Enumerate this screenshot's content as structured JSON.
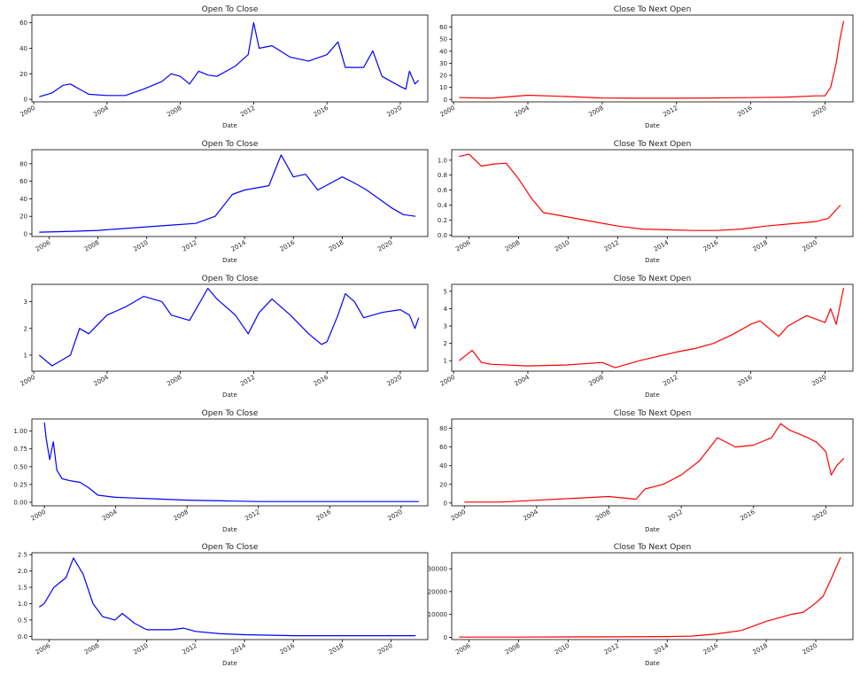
{
  "colors": {
    "open_to_close": "#0000ff",
    "close_to_next_open": "#ff0000",
    "axes": "#000000"
  },
  "chart_data": [
    {
      "type": "line",
      "title": "Open To Close",
      "xlabel": "Date",
      "ylabel": "",
      "xlim": [
        1999.9,
        2021.5
      ],
      "ylim": [
        -2,
        66
      ],
      "xticks": [
        2000,
        2004,
        2008,
        2012,
        2016,
        2020
      ],
      "yticks": [
        0,
        20,
        40,
        60
      ],
      "grid": false,
      "color": "#0000ff",
      "series": [
        {
          "x": [
            2000.3,
            2001,
            2001.6,
            2002,
            2002.5,
            2003,
            2004,
            2005,
            2006,
            2007,
            2007.5,
            2008,
            2008.5,
            2009,
            2009.5,
            2010,
            2011,
            2011.7,
            2012.0,
            2012.3,
            2013,
            2014,
            2015,
            2016,
            2016.6,
            2017,
            2018,
            2018.5,
            2019,
            2020,
            2020.3,
            2020.5,
            2020.8,
            2021.0
          ],
          "y": [
            2,
            5,
            11,
            12,
            8,
            4,
            3,
            3,
            8,
            14,
            20,
            18,
            12,
            22,
            19,
            18,
            26,
            35,
            60,
            40,
            42,
            33,
            30,
            35,
            45,
            25,
            25,
            38,
            18,
            10,
            8,
            22,
            12,
            15
          ]
        }
      ]
    },
    {
      "type": "line",
      "title": "Close To Next Open",
      "xlabel": "Date",
      "ylabel": "",
      "xlim": [
        1999.9,
        2021.5
      ],
      "ylim": [
        -2,
        70
      ],
      "xticks": [
        2000,
        2004,
        2008,
        2012,
        2016,
        2020
      ],
      "yticks": [
        0,
        10,
        20,
        30,
        40,
        50,
        60
      ],
      "grid": false,
      "color": "#ff0000",
      "series": [
        {
          "x": [
            2000.3,
            2002,
            2004,
            2006,
            2008,
            2010,
            2012,
            2014,
            2016,
            2018,
            2019.5,
            2020,
            2020.3,
            2020.6,
            2020.8,
            2021.0
          ],
          "y": [
            1.5,
            1,
            3.5,
            2.5,
            1.2,
            1,
            1,
            1.2,
            1.5,
            2,
            3,
            3,
            10,
            30,
            50,
            65
          ]
        }
      ]
    },
    {
      "type": "line",
      "title": "Open To Close",
      "xlabel": "Date",
      "ylabel": "",
      "xlim": [
        2005.3,
        2021.5
      ],
      "ylim": [
        -3,
        96
      ],
      "xticks": [
        2006,
        2008,
        2010,
        2012,
        2014,
        2016,
        2018,
        2020
      ],
      "yticks": [
        0,
        20,
        40,
        60,
        80
      ],
      "grid": false,
      "color": "#0000ff",
      "series": [
        {
          "x": [
            2005.6,
            2007,
            2008,
            2009,
            2010,
            2011,
            2012,
            2012.8,
            2013.5,
            2014,
            2015,
            2015.5,
            2016,
            2016.5,
            2017,
            2018,
            2018.5,
            2019,
            2020,
            2020.5,
            2021.0
          ],
          "y": [
            2,
            3,
            4,
            6,
            8,
            10,
            12,
            20,
            45,
            50,
            55,
            90,
            65,
            68,
            50,
            65,
            58,
            50,
            30,
            22,
            20
          ]
        }
      ]
    },
    {
      "type": "line",
      "title": "Close To Next Open",
      "xlabel": "Date",
      "ylabel": "",
      "xlim": [
        2005.3,
        2021.5
      ],
      "ylim": [
        -0.02,
        1.14
      ],
      "xticks": [
        2006,
        2008,
        2010,
        2012,
        2014,
        2016,
        2018,
        2020
      ],
      "yticks": [
        0.0,
        0.2,
        0.4,
        0.6,
        0.8,
        1.0
      ],
      "grid": false,
      "color": "#ff0000",
      "series": [
        {
          "x": [
            2005.6,
            2006,
            2006.5,
            2007,
            2007.5,
            2008,
            2008.5,
            2009,
            2010,
            2011,
            2012,
            2013,
            2014,
            2015,
            2016,
            2017,
            2018,
            2019,
            2020,
            2020.5,
            2021.0
          ],
          "y": [
            1.05,
            1.08,
            0.92,
            0.95,
            0.96,
            0.75,
            0.5,
            0.3,
            0.24,
            0.18,
            0.12,
            0.08,
            0.07,
            0.06,
            0.06,
            0.08,
            0.12,
            0.15,
            0.18,
            0.22,
            0.4
          ]
        }
      ]
    },
    {
      "type": "line",
      "title": "Open To Close",
      "xlabel": "Date",
      "ylabel": "",
      "xlim": [
        1999.9,
        2021.5
      ],
      "ylim": [
        0.4,
        3.65
      ],
      "xticks": [
        2000,
        2004,
        2008,
        2012,
        2016,
        2020
      ],
      "yticks": [
        1,
        2,
        3
      ],
      "grid": false,
      "color": "#0000ff",
      "series": [
        {
          "x": [
            2000.3,
            2001,
            2002,
            2002.5,
            2003,
            2004,
            2005,
            2006,
            2007,
            2007.5,
            2008.5,
            2009.5,
            2010,
            2011,
            2011.7,
            2012.3,
            2013,
            2014,
            2015,
            2015.7,
            2016,
            2016.6,
            2017,
            2017.5,
            2018,
            2019,
            2020,
            2020.5,
            2020.8,
            2021.0
          ],
          "y": [
            1,
            0.6,
            1,
            2,
            1.8,
            2.5,
            2.8,
            3.2,
            3,
            2.5,
            2.3,
            3.5,
            3.1,
            2.5,
            1.8,
            2.6,
            3.1,
            2.5,
            1.8,
            1.4,
            1.5,
            2.5,
            3.3,
            3.0,
            2.4,
            2.6,
            2.7,
            2.5,
            2.0,
            2.4
          ]
        }
      ]
    },
    {
      "type": "line",
      "title": "Close To Next Open",
      "xlabel": "Date",
      "ylabel": "",
      "xlim": [
        1999.9,
        2021.5
      ],
      "ylim": [
        0.4,
        5.4
      ],
      "xticks": [
        2000,
        2004,
        2008,
        2012,
        2016,
        2020
      ],
      "yticks": [
        1,
        2,
        3,
        4,
        5
      ],
      "grid": false,
      "color": "#ff0000",
      "series": [
        {
          "x": [
            2000.3,
            2001,
            2001.5,
            2002,
            2004,
            2006,
            2008,
            2008.7,
            2010,
            2012,
            2013,
            2014,
            2015,
            2016,
            2016.5,
            2017.5,
            2018,
            2019,
            2020,
            2020.3,
            2020.6,
            2021.0
          ],
          "y": [
            1,
            1.6,
            0.9,
            0.8,
            0.7,
            0.75,
            0.9,
            0.6,
            1.0,
            1.5,
            1.7,
            2.0,
            2.5,
            3.1,
            3.3,
            2.4,
            3.0,
            3.6,
            3.2,
            4.0,
            3.1,
            5.2
          ]
        }
      ]
    },
    {
      "type": "line",
      "title": "Open To Close",
      "xlabel": "Date",
      "ylabel": "",
      "xlim": [
        1999.3,
        2021.5
      ],
      "ylim": [
        -0.05,
        1.17
      ],
      "xticks": [
        2000,
        2004,
        2008,
        2012,
        2016,
        2020
      ],
      "yticks": [
        0.0,
        0.25,
        0.5,
        0.75,
        1.0
      ],
      "grid": false,
      "color": "#0000ff",
      "series": [
        {
          "x": [
            2000.0,
            2000.1,
            2000.3,
            2000.5,
            2000.7,
            2001,
            2001.5,
            2002,
            2002.5,
            2003,
            2004,
            2005,
            2006,
            2008,
            2010,
            2012,
            2016,
            2021.0
          ],
          "y": [
            1.12,
            0.9,
            0.6,
            0.85,
            0.45,
            0.33,
            0.3,
            0.28,
            0.2,
            0.1,
            0.07,
            0.06,
            0.05,
            0.03,
            0.02,
            0.01,
            0.01,
            0.01
          ]
        }
      ]
    },
    {
      "type": "line",
      "title": "Close To Next Open",
      "xlabel": "Date",
      "ylabel": "",
      "xlim": [
        1999.3,
        2021.5
      ],
      "ylim": [
        -3,
        90
      ],
      "xticks": [
        2000,
        2004,
        2008,
        2012,
        2016,
        2020
      ],
      "yticks": [
        0,
        20,
        40,
        60,
        80
      ],
      "grid": false,
      "color": "#ff0000",
      "series": [
        {
          "x": [
            2000.0,
            2002,
            2004,
            2006,
            2008,
            2009.5,
            2010,
            2011,
            2012,
            2013,
            2014,
            2015,
            2016,
            2017,
            2017.5,
            2018,
            2019,
            2019.5,
            2020,
            2020.3,
            2020.6,
            2021.0
          ],
          "y": [
            1,
            1,
            3,
            5,
            7,
            4,
            15,
            20,
            30,
            45,
            70,
            60,
            62,
            70,
            85,
            78,
            70,
            65,
            55,
            30,
            40,
            48
          ]
        }
      ]
    },
    {
      "type": "line",
      "title": "Open To Close",
      "xlabel": "Date",
      "ylabel": "",
      "xlim": [
        2005.3,
        2021.5
      ],
      "ylim": [
        -0.1,
        2.56
      ],
      "xticks": [
        2006,
        2008,
        2010,
        2012,
        2014,
        2016,
        2018,
        2020
      ],
      "yticks": [
        0.0,
        0.5,
        1.0,
        1.5,
        2.0,
        2.5
      ],
      "grid": false,
      "color": "#0000ff",
      "series": [
        {
          "x": [
            2005.6,
            2005.8,
            2006.2,
            2006.7,
            2007.0,
            2007.4,
            2007.8,
            2008.2,
            2008.7,
            2009.0,
            2009.5,
            2010,
            2011,
            2011.5,
            2012,
            2013,
            2014,
            2016,
            2021.0
          ],
          "y": [
            0.9,
            1.0,
            1.5,
            1.8,
            2.4,
            1.9,
            1.0,
            0.6,
            0.5,
            0.7,
            0.4,
            0.2,
            0.2,
            0.25,
            0.15,
            0.08,
            0.05,
            0.02,
            0.02
          ]
        }
      ]
    },
    {
      "type": "line",
      "title": "Close To Next Open",
      "xlabel": "Date",
      "ylabel": "",
      "xlim": [
        2005.3,
        2021.5
      ],
      "ylim": [
        -1000,
        37000
      ],
      "xticks": [
        2006,
        2008,
        2010,
        2012,
        2014,
        2016,
        2018,
        2020
      ],
      "yticks": [
        0,
        10000,
        20000,
        30000
      ],
      "grid": false,
      "color": "#ff0000",
      "series": [
        {
          "x": [
            2005.6,
            2008,
            2010,
            2012,
            2014,
            2015,
            2016,
            2017,
            2018,
            2019,
            2019.5,
            2020,
            2020.3,
            2020.6,
            2021.0
          ],
          "y": [
            100,
            100,
            150,
            200,
            300,
            500,
            1500,
            3000,
            7000,
            10000,
            11000,
            15000,
            18000,
            25000,
            35000
          ]
        }
      ]
    }
  ]
}
